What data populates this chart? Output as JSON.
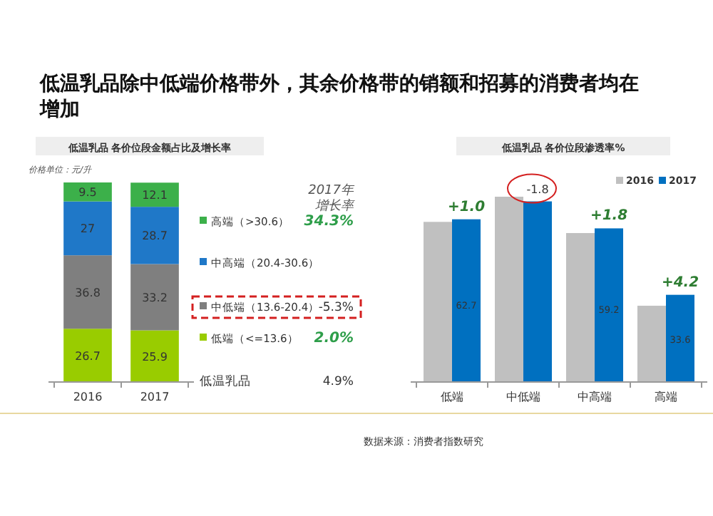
{
  "chart_data": [
    {
      "type": "bar",
      "title": "低温乳品除中低端价格带外，其余价格带的销额和招募的消费者均在增加",
      "subtitle": "低温乳品  各价位段金额占比及增长率",
      "ylabel": "价格单位：元/升",
      "categories": [
        "2016",
        "2017"
      ],
      "stacked": true,
      "data_labels": true,
      "legend": "right",
      "legend_title": "2017年增长率",
      "series": [
        {
          "name": "低端（<=13.6）",
          "color": "#99cc00",
          "values": [
            26.7,
            25.9
          ]
        },
        {
          "name": "中低端（13.6-20.4）",
          "color": "#7f7f7f",
          "values": [
            36.8,
            33.2
          ]
        },
        {
          "name": "中高端（20.4-30.6）",
          "color": "#1f78c8",
          "values": [
            27.0,
            28.7
          ]
        },
        {
          "name": "高端（>30.6）",
          "color": "#3cb04a",
          "values": [
            9.5,
            12.1
          ]
        }
      ],
      "annotations": [
        "34.3%",
        null,
        "-5.3%",
        "2.0%",
        "低温乳品",
        "4.9%"
      ]
    },
    {
      "type": "bar",
      "title": "低温乳品  各价位段渗透率%",
      "categories": [
        "低端",
        "中低端",
        "中高端",
        "高端"
      ],
      "legend": "top right",
      "series": [
        {
          "name": "2016",
          "color": "#c0c0c0",
          "values": [
            61.7,
            71.4,
            57.4,
            29.4
          ]
        },
        {
          "name": "2017",
          "color": "#0070c0",
          "values": [
            62.7,
            69.6,
            59.2,
            33.6
          ],
          "value_labels": [
            "62.7",
            null,
            "59.2",
            "33.6"
          ]
        }
      ],
      "annotations": [
        {
          "text": "+1.0",
          "x": "低端",
          "y": 62.7
        },
        {
          "text": "-1.8",
          "x": "中低端",
          "y": 69.6
        },
        {
          "text": "+1.8",
          "x": "中高端",
          "y": 59.2
        },
        {
          "text": "+4.2",
          "x": "高端",
          "y": 33.6
        },
        "数据来源：消费者指数研究"
      ]
    }
  ]
}
